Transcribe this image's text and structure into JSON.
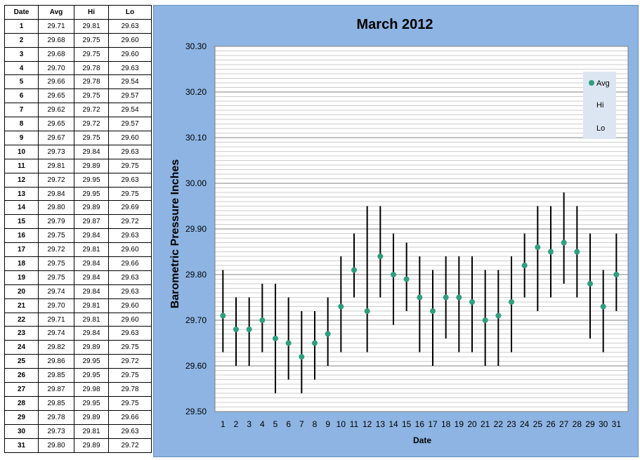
{
  "table": {
    "headers": [
      "Date",
      "Avg",
      "Hi",
      "Lo"
    ],
    "rows": [
      [
        "1",
        "29.71",
        "29.81",
        "29.63"
      ],
      [
        "2",
        "29.68",
        "29.75",
        "29.60"
      ],
      [
        "3",
        "29.68",
        "29.75",
        "29.60"
      ],
      [
        "4",
        "29.70",
        "29.78",
        "29.63"
      ],
      [
        "5",
        "29.66",
        "29.78",
        "29.54"
      ],
      [
        "6",
        "29.65",
        "29.75",
        "29.57"
      ],
      [
        "7",
        "29.62",
        "29.72",
        "29.54"
      ],
      [
        "8",
        "29.65",
        "29.72",
        "29.57"
      ],
      [
        "9",
        "29.67",
        "29.75",
        "29.60"
      ],
      [
        "10",
        "29.73",
        "29.84",
        "29.63"
      ],
      [
        "11",
        "29.81",
        "29.89",
        "29.75"
      ],
      [
        "12",
        "29.72",
        "29.95",
        "29.63"
      ],
      [
        "13",
        "29.84",
        "29.95",
        "29.75"
      ],
      [
        "14",
        "29.80",
        "29.89",
        "29.69"
      ],
      [
        "15",
        "29.79",
        "29.87",
        "29.72"
      ],
      [
        "16",
        "29.75",
        "29.84",
        "29.63"
      ],
      [
        "17",
        "29.72",
        "29.81",
        "29.60"
      ],
      [
        "18",
        "29.75",
        "29.84",
        "29.66"
      ],
      [
        "19",
        "29.75",
        "29.84",
        "29.63"
      ],
      [
        "20",
        "29.74",
        "29.84",
        "29.63"
      ],
      [
        "21",
        "29.70",
        "29.81",
        "29.60"
      ],
      [
        "22",
        "29.71",
        "29.81",
        "29.60"
      ],
      [
        "23",
        "29.74",
        "29.84",
        "29.63"
      ],
      [
        "24",
        "29.82",
        "29.89",
        "29.75"
      ],
      [
        "25",
        "29.86",
        "29.95",
        "29.72"
      ],
      [
        "26",
        "29.85",
        "29.95",
        "29.75"
      ],
      [
        "27",
        "29.87",
        "29.98",
        "29.78"
      ],
      [
        "28",
        "29.85",
        "29.95",
        "29.75"
      ],
      [
        "29",
        "29.78",
        "29.89",
        "29.66"
      ],
      [
        "30",
        "29.73",
        "29.81",
        "29.63"
      ],
      [
        "31",
        "29.80",
        "29.89",
        "29.72"
      ]
    ]
  },
  "chart_data": {
    "type": "scatter",
    "title": "March 2012",
    "xlabel": "Date",
    "ylabel": "Barometric Pressure Inches",
    "x": [
      1,
      2,
      3,
      4,
      5,
      6,
      7,
      8,
      9,
      10,
      11,
      12,
      13,
      14,
      15,
      16,
      17,
      18,
      19,
      20,
      21,
      22,
      23,
      24,
      25,
      26,
      27,
      28,
      29,
      30,
      31
    ],
    "series": [
      {
        "name": "Avg",
        "values": [
          29.71,
          29.68,
          29.68,
          29.7,
          29.66,
          29.65,
          29.62,
          29.65,
          29.67,
          29.73,
          29.81,
          29.72,
          29.84,
          29.8,
          29.79,
          29.75,
          29.72,
          29.75,
          29.75,
          29.74,
          29.7,
          29.71,
          29.74,
          29.82,
          29.86,
          29.85,
          29.87,
          29.85,
          29.78,
          29.73,
          29.8
        ]
      },
      {
        "name": "Hi",
        "values": [
          29.81,
          29.75,
          29.75,
          29.78,
          29.78,
          29.75,
          29.72,
          29.72,
          29.75,
          29.84,
          29.89,
          29.95,
          29.95,
          29.89,
          29.87,
          29.84,
          29.81,
          29.84,
          29.84,
          29.84,
          29.81,
          29.81,
          29.84,
          29.89,
          29.95,
          29.95,
          29.98,
          29.95,
          29.89,
          29.81,
          29.89
        ]
      },
      {
        "name": "Lo",
        "values": [
          29.63,
          29.6,
          29.6,
          29.63,
          29.54,
          29.57,
          29.54,
          29.57,
          29.6,
          29.63,
          29.75,
          29.63,
          29.75,
          29.69,
          29.72,
          29.63,
          29.6,
          29.66,
          29.63,
          29.63,
          29.6,
          29.6,
          29.63,
          29.75,
          29.72,
          29.75,
          29.78,
          29.75,
          29.66,
          29.63,
          29.72
        ]
      }
    ],
    "ylim": [
      29.5,
      30.3
    ],
    "yticks": [
      "29.50",
      "29.60",
      "29.70",
      "29.80",
      "29.90",
      "30.00",
      "30.10",
      "30.20",
      "30.30"
    ],
    "grid": true,
    "legend_position": "top-right",
    "avg_marker_color": "#2e9e7e",
    "range_line_color": "#000000",
    "background_color": "#8db4e2"
  }
}
